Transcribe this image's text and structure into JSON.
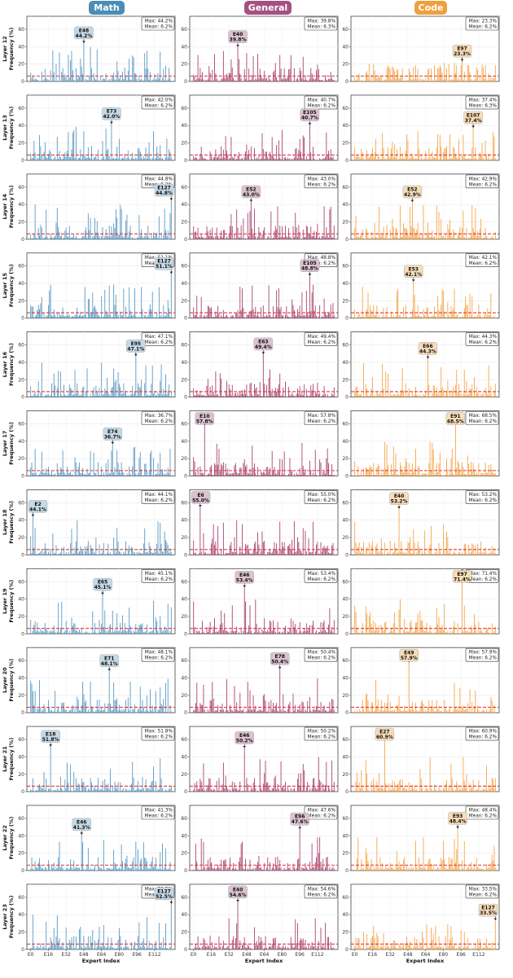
{
  "columns": [
    {
      "key": "math",
      "label": "Math",
      "color": "#4a8db7",
      "bar_color": "#5b9ac4"
    },
    {
      "key": "general",
      "label": "General",
      "color": "#a35182",
      "bar_color": "#a8456f"
    },
    {
      "key": "code",
      "label": "Code",
      "color": "#f0a03c",
      "bar_color": "#f5a54a"
    }
  ],
  "chart_data": {
    "type": "bar",
    "xlabel": "Expert Index",
    "x_ticks": [
      "E0",
      "E16",
      "E32",
      "E48",
      "E64",
      "E80",
      "E96",
      "E112"
    ],
    "x_tick_values": [
      0,
      16,
      32,
      48,
      64,
      80,
      96,
      112
    ],
    "num_experts": 128,
    "ylim": [
      0,
      75
    ],
    "y_ticks": [
      0,
      20,
      40,
      60
    ],
    "ylabel_template": "Layer {n}\nFrequency (%)",
    "mean_line": {
      "style": "dashed",
      "color": "#e0383b",
      "value": 6.2
    },
    "panels": [
      {
        "layer": 12,
        "column": "math",
        "max_label": "Max: 44.2%",
        "mean_label": "Mean: 6.2%",
        "peak": {
          "expert": "E48",
          "index": 48,
          "value": 44.2,
          "label": "44.2%"
        }
      },
      {
        "layer": 12,
        "column": "general",
        "max_label": "Max: 39.8%",
        "mean_label": "Mean: 6.3%",
        "peak": {
          "expert": "E40",
          "index": 40,
          "value": 39.8,
          "label": "39.8%"
        }
      },
      {
        "layer": 12,
        "column": "code",
        "max_label": "Max: 23.3%",
        "mean_label": "Mean: 6.2%",
        "peak": {
          "expert": "E97",
          "index": 97,
          "value": 23.3,
          "label": "23.3%"
        }
      },
      {
        "layer": 13,
        "column": "math",
        "max_label": "Max: 42.0%",
        "mean_label": "Mean: 6.2%",
        "peak": {
          "expert": "E73",
          "index": 73,
          "value": 42.0,
          "label": "42.0%"
        }
      },
      {
        "layer": 13,
        "column": "general",
        "max_label": "Max: 40.7%",
        "mean_label": "Mean: 6.2%",
        "peak": {
          "expert": "E105",
          "index": 105,
          "value": 40.7,
          "label": "40.7%"
        }
      },
      {
        "layer": 13,
        "column": "code",
        "max_label": "Max: 37.4%",
        "mean_label": "Mean: 6.3%",
        "peak": {
          "expert": "E107",
          "index": 107,
          "value": 37.4,
          "label": "37.4%"
        }
      },
      {
        "layer": 14,
        "column": "math",
        "max_label": "Max: 44.8%",
        "mean_label": "Mean: 6.2%",
        "peak": {
          "expert": "E127",
          "index": 127,
          "value": 44.8,
          "label": "44.8%"
        }
      },
      {
        "layer": 14,
        "column": "general",
        "max_label": "Max: 43.0%",
        "mean_label": "Mean: 6.2%",
        "peak": {
          "expert": "E52",
          "index": 52,
          "value": 43.0,
          "label": "43.0%"
        }
      },
      {
        "layer": 14,
        "column": "code",
        "max_label": "Max: 42.9%",
        "mean_label": "Mean: 6.2%",
        "peak": {
          "expert": "E52",
          "index": 52,
          "value": 42.9,
          "label": "42.9%"
        }
      },
      {
        "layer": 15,
        "column": "math",
        "max_label": "Max: 51.1%",
        "mean_label": "Mean: 6.2%",
        "peak": {
          "expert": "E127",
          "index": 127,
          "value": 51.1,
          "label": "51.1%"
        }
      },
      {
        "layer": 15,
        "column": "general",
        "max_label": "Max: 48.8%",
        "mean_label": "Mean: 6.2%",
        "peak": {
          "expert": "E105",
          "index": 105,
          "value": 48.8,
          "label": "48.8%"
        }
      },
      {
        "layer": 15,
        "column": "code",
        "max_label": "Max: 42.1%",
        "mean_label": "Mean: 6.2%",
        "peak": {
          "expert": "E53",
          "index": 53,
          "value": 42.1,
          "label": "42.1%"
        }
      },
      {
        "layer": 16,
        "column": "math",
        "max_label": "Max: 47.1%",
        "mean_label": "Mean: 6.2%",
        "peak": {
          "expert": "E95",
          "index": 95,
          "value": 47.1,
          "label": "47.1%"
        }
      },
      {
        "layer": 16,
        "column": "general",
        "max_label": "Max: 49.4%",
        "mean_label": "Mean: 6.2%",
        "peak": {
          "expert": "E63",
          "index": 63,
          "value": 49.4,
          "label": "49.4%"
        }
      },
      {
        "layer": 16,
        "column": "code",
        "max_label": "Max: 44.3%",
        "mean_label": "Mean: 6.2%",
        "peak": {
          "expert": "E66",
          "index": 66,
          "value": 44.3,
          "label": "44.3%"
        }
      },
      {
        "layer": 17,
        "column": "math",
        "max_label": "Max: 36.7%",
        "mean_label": "Mean: 6.2%",
        "peak": {
          "expert": "E74",
          "index": 74,
          "value": 36.7,
          "label": "36.7%"
        }
      },
      {
        "layer": 17,
        "column": "general",
        "max_label": "Max: 57.8%",
        "mean_label": "Mean: 6.2%",
        "peak": {
          "expert": "E10",
          "index": 10,
          "value": 57.8,
          "label": "57.8%"
        }
      },
      {
        "layer": 17,
        "column": "code",
        "max_label": "Max: 68.5%",
        "mean_label": "Mean: 6.2%",
        "peak": {
          "expert": "E91",
          "index": 91,
          "value": 68.5,
          "label": "68.5%"
        }
      },
      {
        "layer": 18,
        "column": "math",
        "max_label": "Max: 44.1%",
        "mean_label": "Mean: 6.2%",
        "peak": {
          "expert": "E2",
          "index": 2,
          "value": 44.1,
          "label": "44.1%"
        }
      },
      {
        "layer": 18,
        "column": "general",
        "max_label": "Max: 55.0%",
        "mean_label": "Mean: 6.2%",
        "peak": {
          "expert": "E6",
          "index": 6,
          "value": 55.0,
          "label": "55.0%"
        }
      },
      {
        "layer": 18,
        "column": "code",
        "max_label": "Max: 53.2%",
        "mean_label": "Mean: 6.2%",
        "peak": {
          "expert": "E40",
          "index": 40,
          "value": 53.2,
          "label": "53.2%"
        }
      },
      {
        "layer": 19,
        "column": "math",
        "max_label": "Max: 45.1%",
        "mean_label": "Mean: 6.2%",
        "peak": {
          "expert": "E65",
          "index": 65,
          "value": 45.1,
          "label": "45.1%"
        }
      },
      {
        "layer": 19,
        "column": "general",
        "max_label": "Max: 53.4%",
        "mean_label": "Mean: 6.2%",
        "peak": {
          "expert": "E46",
          "index": 46,
          "value": 53.4,
          "label": "53.4%"
        }
      },
      {
        "layer": 19,
        "column": "code",
        "max_label": "Max: 71.4%",
        "mean_label": "Mean: 6.2%",
        "peak": {
          "expert": "E97",
          "index": 97,
          "value": 71.4,
          "label": "71.4%"
        }
      },
      {
        "layer": 20,
        "column": "math",
        "max_label": "Max: 48.1%",
        "mean_label": "Mean: 6.2%",
        "peak": {
          "expert": "E71",
          "index": 71,
          "value": 48.1,
          "label": "48.1%"
        }
      },
      {
        "layer": 20,
        "column": "general",
        "max_label": "Max: 50.4%",
        "mean_label": "Mean: 6.2%",
        "peak": {
          "expert": "E78",
          "index": 78,
          "value": 50.4,
          "label": "50.4%"
        }
      },
      {
        "layer": 20,
        "column": "code",
        "max_label": "Max: 57.9%",
        "mean_label": "Mean: 6.2%",
        "peak": {
          "expert": "E49",
          "index": 49,
          "value": 57.9,
          "label": "57.9%"
        }
      },
      {
        "layer": 21,
        "column": "math",
        "max_label": "Max: 51.8%",
        "mean_label": "Mean: 6.2%",
        "peak": {
          "expert": "E18",
          "index": 18,
          "value": 51.8,
          "label": "51.8%"
        }
      },
      {
        "layer": 21,
        "column": "general",
        "max_label": "Max: 50.2%",
        "mean_label": "Mean: 6.2%",
        "peak": {
          "expert": "E46",
          "index": 46,
          "value": 50.2,
          "label": "50.2%"
        }
      },
      {
        "layer": 21,
        "column": "code",
        "max_label": "Max: 60.9%",
        "mean_label": "Mean: 6.2%",
        "peak": {
          "expert": "E27",
          "index": 27,
          "value": 60.9,
          "label": "60.9%"
        }
      },
      {
        "layer": 22,
        "column": "math",
        "max_label": "Max: 41.3%",
        "mean_label": "Mean: 6.2%",
        "peak": {
          "expert": "E46",
          "index": 46,
          "value": 41.3,
          "label": "41.3%"
        }
      },
      {
        "layer": 22,
        "column": "general",
        "max_label": "Max: 47.6%",
        "mean_label": "Mean: 6.2%",
        "peak": {
          "expert": "E96",
          "index": 96,
          "value": 47.6,
          "label": "47.6%"
        }
      },
      {
        "layer": 22,
        "column": "code",
        "max_label": "Max: 48.4%",
        "mean_label": "Mean: 6.2%",
        "peak": {
          "expert": "E93",
          "index": 93,
          "value": 48.4,
          "label": "48.4%"
        }
      },
      {
        "layer": 23,
        "column": "math",
        "max_label": "Max: 52.5%",
        "mean_label": "Mean: 6.2%",
        "peak": {
          "expert": "E127",
          "index": 127,
          "value": 52.5,
          "label": "52.5%"
        }
      },
      {
        "layer": 23,
        "column": "general",
        "max_label": "Max: 54.6%",
        "mean_label": "Mean: 6.2%",
        "peak": {
          "expert": "E40",
          "index": 40,
          "value": 54.6,
          "label": "54.6%"
        }
      },
      {
        "layer": 23,
        "column": "code",
        "max_label": "Max: 33.5%",
        "mean_label": "Mean: 6.2%",
        "peak": {
          "expert": "E127",
          "index": 127,
          "value": 33.5,
          "label": "33.5%"
        }
      }
    ]
  }
}
